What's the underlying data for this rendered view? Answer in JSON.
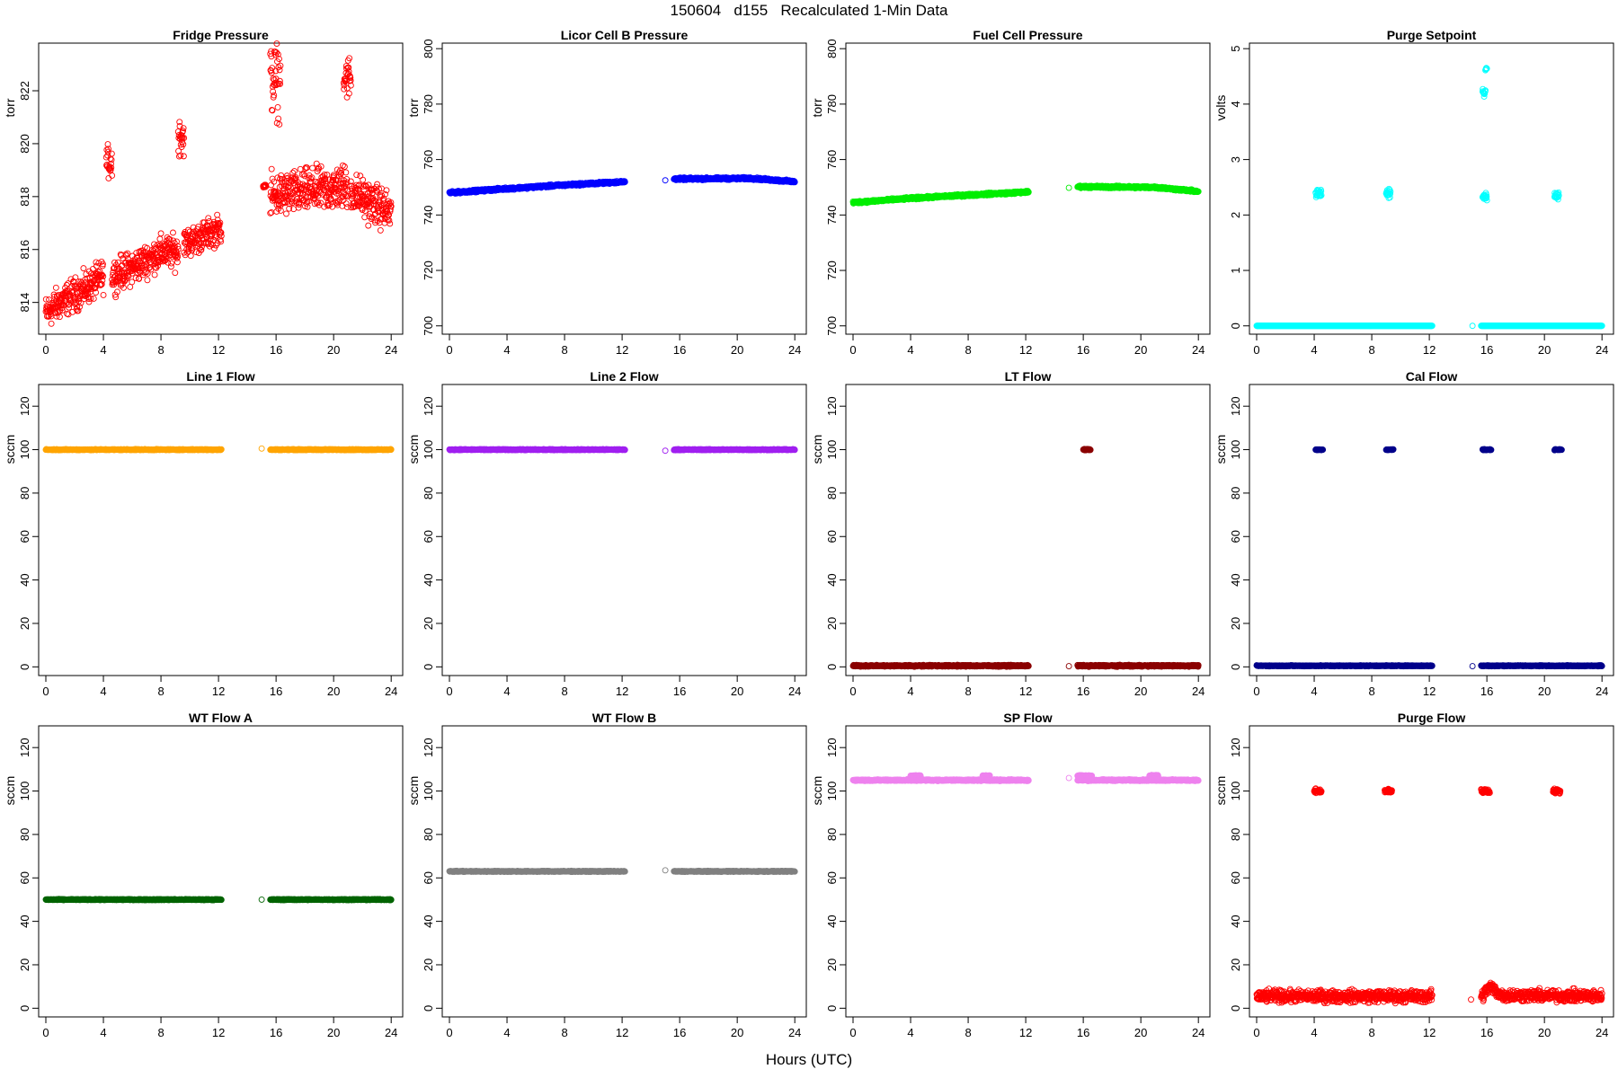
{
  "figure": {
    "title": "150604   d155   Recalculated 1-Min Data",
    "xlabel": "Hours (UTC)"
  },
  "chart_data": [
    {
      "type": "scatter",
      "title": "Fridge Pressure",
      "ylabel": "torr",
      "color": "#ff0000",
      "xlim": [
        0,
        24
      ],
      "ylim": [
        812.8,
        823.8
      ],
      "xticks": [
        0,
        4,
        8,
        12,
        16,
        20,
        24
      ],
      "yticks": [
        814,
        816,
        818,
        820,
        822
      ],
      "series": [
        {
          "segments": [
            {
              "x": [
                0,
                1,
                2,
                3,
                4
              ],
              "y": [
                813.6,
                814.0,
                814.3,
                814.6,
                815.0
              ],
              "spread": 0.9
            },
            {
              "x": [
                4.2,
                4.6
              ],
              "y": [
                819.3,
                819.3
              ],
              "spread": 0.9
            },
            {
              "x": [
                4.6,
                6,
                8,
                9.2
              ],
              "y": [
                815.0,
                815.3,
                815.9,
                815.9
              ],
              "spread": 0.9
            },
            {
              "x": [
                9.2,
                9.6
              ],
              "y": [
                820.3,
                820.3
              ],
              "spread": 1.1
            },
            {
              "x": [
                9.6,
                12.2
              ],
              "y": [
                816.2,
                816.8
              ],
              "spread": 0.8
            },
            {
              "x": [
                15.1,
                15.3
              ],
              "y": [
                818.4,
                818.4
              ],
              "spread": 0.1
            },
            {
              "x": [
                15.6,
                16.3
              ],
              "y": [
                822.4,
                822.4
              ],
              "spread": 2.0
            },
            {
              "x": [
                15.6,
                18,
                20,
                21
              ],
              "y": [
                818.0,
                818.2,
                818.3,
                818.4
              ],
              "spread": 1.2
            },
            {
              "x": [
                20.7,
                21.2
              ],
              "y": [
                822.5,
                822.5
              ],
              "spread": 1.2
            },
            {
              "x": [
                21.2,
                22.5,
                24
              ],
              "y": [
                818.2,
                817.8,
                817.4
              ],
              "spread": 1.1
            }
          ]
        }
      ]
    },
    {
      "type": "scatter",
      "title": "Licor Cell B Pressure",
      "ylabel": "torr",
      "color": "#0000ff",
      "xlim": [
        0,
        24
      ],
      "ylim": [
        697,
        802
      ],
      "xticks": [
        0,
        4,
        8,
        12,
        16,
        20,
        24
      ],
      "yticks": [
        700,
        720,
        740,
        760,
        780,
        800
      ],
      "series": [
        {
          "segments": [
            {
              "x": [
                0,
                4,
                8,
                12.2
              ],
              "y": [
                748.0,
                749.5,
                750.8,
                752.0
              ],
              "spread": 0.6
            },
            {
              "x": [
                15.0
              ],
              "y": [
                752.5
              ],
              "spread": 0
            },
            {
              "x": [
                15.6,
                18,
                21,
                24
              ],
              "y": [
                753.0,
                753.1,
                753.2,
                752.0
              ],
              "spread": 0.6
            }
          ]
        }
      ]
    },
    {
      "type": "scatter",
      "title": "Fuel Cell Pressure",
      "ylabel": "torr",
      "color": "#00ee00",
      "xlim": [
        0,
        24
      ],
      "ylim": [
        697,
        802
      ],
      "xticks": [
        0,
        4,
        8,
        12,
        16,
        20,
        24
      ],
      "yticks": [
        700,
        720,
        740,
        760,
        780,
        800
      ],
      "series": [
        {
          "segments": [
            {
              "x": [
                0,
                4,
                8,
                12.2
              ],
              "y": [
                744.5,
                746.0,
                747.2,
                748.3
              ],
              "spread": 0.6
            },
            {
              "x": [
                15.0
              ],
              "y": [
                749.8
              ],
              "spread": 0
            },
            {
              "x": [
                15.6,
                18,
                21,
                24
              ],
              "y": [
                750.2,
                750.1,
                750.0,
                748.5
              ],
              "spread": 0.6
            }
          ]
        }
      ]
    },
    {
      "type": "scatter",
      "title": "Purge Setpoint",
      "ylabel": "volts",
      "color": "#00ffff",
      "xlim": [
        0,
        24
      ],
      "ylim": [
        -0.15,
        5.1
      ],
      "xticks": [
        0,
        4,
        8,
        12,
        16,
        20,
        24
      ],
      "yticks": [
        0,
        1,
        2,
        3,
        4,
        5
      ],
      "series": [
        {
          "segments": [
            {
              "x": [
                0,
                12.2
              ],
              "y": [
                0,
                0
              ],
              "spread": 0
            },
            {
              "x": [
                4.1,
                4.5
              ],
              "y": [
                2.38,
                2.38
              ],
              "spread": 0.12
            },
            {
              "x": [
                9.0,
                9.3
              ],
              "y": [
                2.38,
                2.38
              ],
              "spread": 0.12
            },
            {
              "x": [
                15.0
              ],
              "y": [
                0
              ],
              "spread": 0
            },
            {
              "x": [
                15.6,
                24
              ],
              "y": [
                0,
                0
              ],
              "spread": 0
            },
            {
              "x": [
                15.7,
                15.9
              ],
              "y": [
                4.2,
                4.2
              ],
              "spread": 0.1
            },
            {
              "x": [
                15.9,
                16.0
              ],
              "y": [
                4.63,
                4.63
              ],
              "spread": 0.05
            },
            {
              "x": [
                15.7,
                16.0
              ],
              "y": [
                2.33,
                2.33
              ],
              "spread": 0.12
            },
            {
              "x": [
                20.7,
                21.0
              ],
              "y": [
                2.36,
                2.36
              ],
              "spread": 0.1
            }
          ]
        }
      ]
    },
    {
      "type": "scatter",
      "title": "Line 1 Flow",
      "ylabel": "sccm",
      "color": "#ffa500",
      "xlim": [
        0,
        24
      ],
      "ylim": [
        -4,
        130
      ],
      "xticks": [
        0,
        4,
        8,
        12,
        16,
        20,
        24
      ],
      "yticks": [
        0,
        20,
        40,
        60,
        80,
        100,
        120
      ],
      "series": [
        {
          "segments": [
            {
              "x": [
                0,
                12.2
              ],
              "y": [
                100,
                100
              ],
              "spread": 0.3
            },
            {
              "x": [
                15.0
              ],
              "y": [
                100.5
              ],
              "spread": 0
            },
            {
              "x": [
                15.6,
                24
              ],
              "y": [
                100,
                100
              ],
              "spread": 0.3
            }
          ]
        }
      ]
    },
    {
      "type": "scatter",
      "title": "Line 2 Flow",
      "ylabel": "sccm",
      "color": "#a020f0",
      "xlim": [
        0,
        24
      ],
      "ylim": [
        -4,
        130
      ],
      "xticks": [
        0,
        4,
        8,
        12,
        16,
        20,
        24
      ],
      "yticks": [
        0,
        20,
        40,
        60,
        80,
        100,
        120
      ],
      "series": [
        {
          "segments": [
            {
              "x": [
                0,
                12.2
              ],
              "y": [
                100,
                100
              ],
              "spread": 0.3
            },
            {
              "x": [
                15.0
              ],
              "y": [
                99.5
              ],
              "spread": 0
            },
            {
              "x": [
                15.6,
                24
              ],
              "y": [
                100,
                100
              ],
              "spread": 0.3
            }
          ]
        }
      ]
    },
    {
      "type": "scatter",
      "title": "LT Flow",
      "ylabel": "sccm",
      "color": "#8b0000",
      "xlim": [
        0,
        24
      ],
      "ylim": [
        -4,
        130
      ],
      "xticks": [
        0,
        4,
        8,
        12,
        16,
        20,
        24
      ],
      "yticks": [
        0,
        20,
        40,
        60,
        80,
        100,
        120
      ],
      "series": [
        {
          "segments": [
            {
              "x": [
                0,
                12.2
              ],
              "y": [
                0.5,
                0.5
              ],
              "spread": 0.5
            },
            {
              "x": [
                15.0
              ],
              "y": [
                0.3
              ],
              "spread": 0
            },
            {
              "x": [
                15.6,
                24
              ],
              "y": [
                0.5,
                0.5
              ],
              "spread": 0.5
            },
            {
              "x": [
                16.0,
                16.5
              ],
              "y": [
                100,
                100
              ],
              "spread": 0.4
            }
          ]
        }
      ]
    },
    {
      "type": "scatter",
      "title": "Cal Flow",
      "ylabel": "sccm",
      "color": "#00008b",
      "xlim": [
        0,
        24
      ],
      "ylim": [
        -4,
        130
      ],
      "xticks": [
        0,
        4,
        8,
        12,
        16,
        20,
        24
      ],
      "yticks": [
        0,
        20,
        40,
        60,
        80,
        100,
        120
      ],
      "series": [
        {
          "segments": [
            {
              "x": [
                0,
                12.2
              ],
              "y": [
                0.5,
                0.5
              ],
              "spread": 0.3
            },
            {
              "x": [
                4.1,
                4.6
              ],
              "y": [
                100,
                100
              ],
              "spread": 0.3
            },
            {
              "x": [
                9.0,
                9.5
              ],
              "y": [
                100,
                100
              ],
              "spread": 0.3
            },
            {
              "x": [
                15.0
              ],
              "y": [
                0.3
              ],
              "spread": 0
            },
            {
              "x": [
                15.6,
                24
              ],
              "y": [
                0.5,
                0.5
              ],
              "spread": 0.3
            },
            {
              "x": [
                15.7,
                16.3
              ],
              "y": [
                100,
                100
              ],
              "spread": 0.3
            },
            {
              "x": [
                20.7,
                21.2
              ],
              "y": [
                100,
                100
              ],
              "spread": 0.3
            }
          ]
        }
      ]
    },
    {
      "type": "scatter",
      "title": "WT Flow A",
      "ylabel": "sccm",
      "color": "#006400",
      "xlim": [
        0,
        24
      ],
      "ylim": [
        -4,
        130
      ],
      "xticks": [
        0,
        4,
        8,
        12,
        16,
        20,
        24
      ],
      "yticks": [
        0,
        20,
        40,
        60,
        80,
        100,
        120
      ],
      "series": [
        {
          "segments": [
            {
              "x": [
                0,
                12.2
              ],
              "y": [
                50,
                50
              ],
              "spread": 0.3
            },
            {
              "x": [
                15.0
              ],
              "y": [
                50
              ],
              "spread": 0
            },
            {
              "x": [
                15.6,
                24
              ],
              "y": [
                50,
                50
              ],
              "spread": 0.3
            }
          ]
        }
      ]
    },
    {
      "type": "scatter",
      "title": "WT Flow B",
      "ylabel": "sccm",
      "color": "#808080",
      "xlim": [
        0,
        24
      ],
      "ylim": [
        -4,
        130
      ],
      "xticks": [
        0,
        4,
        8,
        12,
        16,
        20,
        24
      ],
      "yticks": [
        0,
        20,
        40,
        60,
        80,
        100,
        120
      ],
      "series": [
        {
          "segments": [
            {
              "x": [
                0,
                12.2
              ],
              "y": [
                63,
                63
              ],
              "spread": 0.3
            },
            {
              "x": [
                15.0
              ],
              "y": [
                63.5
              ],
              "spread": 0
            },
            {
              "x": [
                15.6,
                24
              ],
              "y": [
                63,
                63
              ],
              "spread": 0.3
            }
          ]
        }
      ]
    },
    {
      "type": "scatter",
      "title": "SP Flow",
      "ylabel": "sccm",
      "color": "#ee82ee",
      "xlim": [
        0,
        24
      ],
      "ylim": [
        -4,
        130
      ],
      "xticks": [
        0,
        4,
        8,
        12,
        16,
        20,
        24
      ],
      "yticks": [
        0,
        20,
        40,
        60,
        80,
        100,
        120
      ],
      "series": [
        {
          "segments": [
            {
              "x": [
                0,
                12.2
              ],
              "y": [
                105,
                105
              ],
              "spread": 0.5
            },
            {
              "x": [
                4.0,
                4.7
              ],
              "y": [
                107,
                107
              ],
              "spread": 0.5
            },
            {
              "x": [
                9.0,
                9.5
              ],
              "y": [
                107,
                107
              ],
              "spread": 0.5
            },
            {
              "x": [
                15.0
              ],
              "y": [
                106
              ],
              "spread": 0
            },
            {
              "x": [
                15.6,
                24
              ],
              "y": [
                105,
                105
              ],
              "spread": 0.5
            },
            {
              "x": [
                15.6,
                16.6
              ],
              "y": [
                107,
                107
              ],
              "spread": 0.5
            },
            {
              "x": [
                20.6,
                21.2
              ],
              "y": [
                107,
                107
              ],
              "spread": 0.5
            }
          ]
        }
      ]
    },
    {
      "type": "scatter",
      "title": "Purge Flow",
      "ylabel": "sccm",
      "color": "#ff0000",
      "xlim": [
        0,
        24
      ],
      "ylim": [
        -4,
        130
      ],
      "xticks": [
        0,
        4,
        8,
        12,
        16,
        20,
        24
      ],
      "yticks": [
        0,
        20,
        40,
        60,
        80,
        100,
        120
      ],
      "series": [
        {
          "segments": [
            {
              "x": [
                0,
                12.2
              ],
              "y": [
                5.5,
                5.5
              ],
              "spread": 4
            },
            {
              "x": [
                4.0,
                4.5
              ],
              "y": [
                100,
                100
              ],
              "spread": 1.5
            },
            {
              "x": [
                8.9,
                9.4
              ],
              "y": [
                100,
                100
              ],
              "spread": 1.5
            },
            {
              "x": [
                14.9
              ],
              "y": [
                4
              ],
              "spread": 0
            },
            {
              "x": [
                15.6,
                16.2,
                17,
                24
              ],
              "y": [
                5,
                10,
                6,
                5.5
              ],
              "spread": 4
            },
            {
              "x": [
                15.6,
                16.2
              ],
              "y": [
                100,
                100
              ],
              "spread": 1.5
            },
            {
              "x": [
                20.6,
                21.1
              ],
              "y": [
                100,
                100
              ],
              "spread": 1.5
            }
          ]
        }
      ]
    }
  ]
}
